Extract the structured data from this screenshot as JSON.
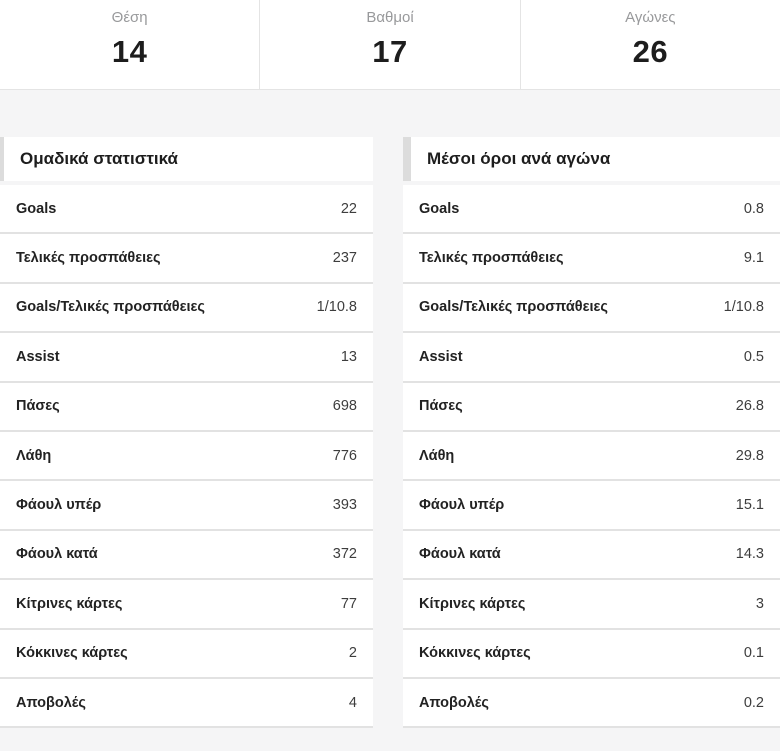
{
  "summary": {
    "items": [
      {
        "label": "Θέση",
        "value": "14"
      },
      {
        "label": "Βαθμοί",
        "value": "17"
      },
      {
        "label": "Αγώνες",
        "value": "26"
      }
    ]
  },
  "team_stats": {
    "title": "Ομαδικά στατιστικά",
    "rows": [
      {
        "label": "Goals",
        "value": "22"
      },
      {
        "label": "Τελικές προσπάθειες",
        "value": "237"
      },
      {
        "label": "Goals/Τελικές προσπάθειες",
        "value": "1/10.8"
      },
      {
        "label": "Assist",
        "value": "13"
      },
      {
        "label": "Πάσες",
        "value": "698"
      },
      {
        "label": "Λάθη",
        "value": "776"
      },
      {
        "label": "Φάουλ υπέρ",
        "value": "393"
      },
      {
        "label": "Φάουλ κατά",
        "value": "372"
      },
      {
        "label": "Κίτρινες κάρτες",
        "value": "77"
      },
      {
        "label": "Κόκκινες κάρτες",
        "value": "2"
      },
      {
        "label": "Αποβολές",
        "value": "4"
      }
    ]
  },
  "per_game_stats": {
    "title": "Μέσοι όροι ανά αγώνα",
    "rows": [
      {
        "label": "Goals",
        "value": "0.8"
      },
      {
        "label": "Τελικές προσπάθειες",
        "value": "9.1"
      },
      {
        "label": "Goals/Τελικές προσπάθειες",
        "value": "1/10.8"
      },
      {
        "label": "Assist",
        "value": "0.5"
      },
      {
        "label": "Πάσες",
        "value": "26.8"
      },
      {
        "label": "Λάθη",
        "value": "29.8"
      },
      {
        "label": "Φάουλ υπέρ",
        "value": "15.1"
      },
      {
        "label": "Φάουλ κατά",
        "value": "14.3"
      },
      {
        "label": "Κίτρινες κάρτες",
        "value": "3"
      },
      {
        "label": "Κόκκινες κάρτες",
        "value": "0.1"
      },
      {
        "label": "Αποβολές",
        "value": "0.2"
      }
    ]
  },
  "colors": {
    "page_background": "#f5f5f6",
    "panel_background": "#ffffff",
    "divider": "#e2e2e2",
    "accent_bar": "#dcdcdc",
    "label_muted": "#98999b",
    "text_dark": "#1d1d1d"
  }
}
